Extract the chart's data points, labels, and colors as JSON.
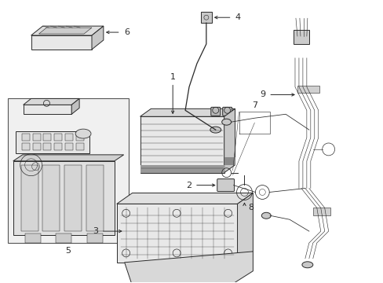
{
  "background_color": "#ffffff",
  "line_color": "#2a2a2a",
  "fill_light": "#e8e8e8",
  "fill_mid": "#d0d0d0",
  "fill_dark": "#aaaaaa",
  "label_color": "#000000",
  "figsize": [
    4.89,
    3.6
  ],
  "dpi": 100,
  "xlim": [
    0,
    489
  ],
  "ylim": [
    0,
    360
  ]
}
